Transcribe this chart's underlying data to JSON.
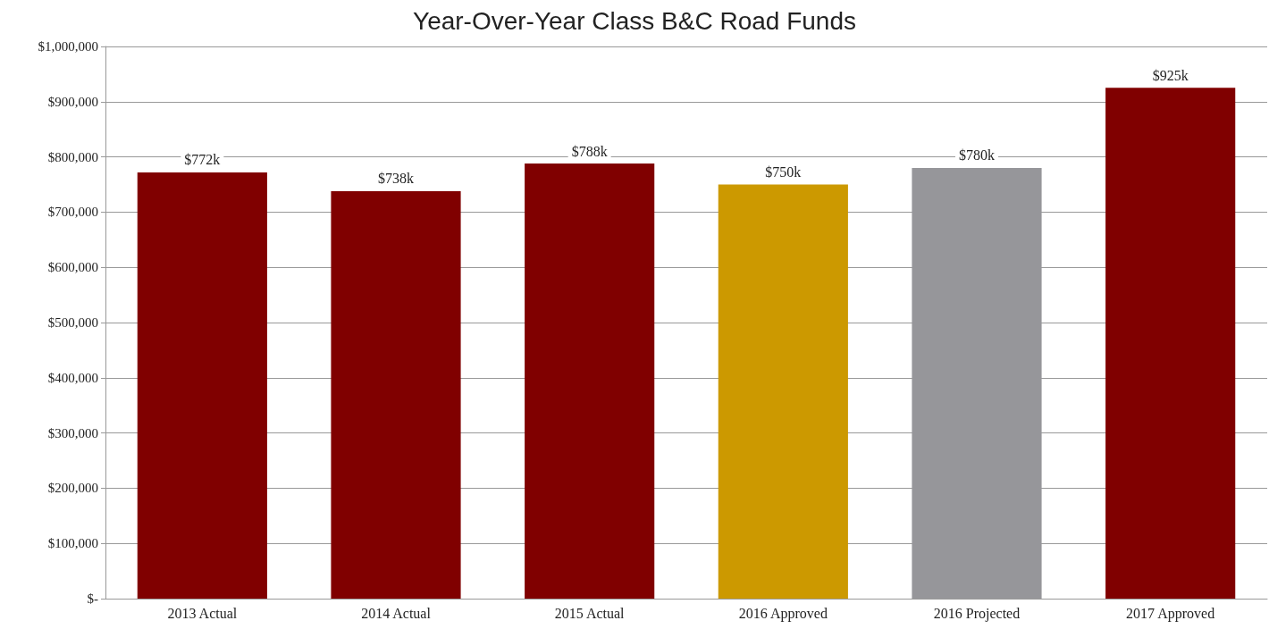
{
  "chart_data": {
    "type": "bar",
    "title": "Year-Over-Year Class B&C Road Funds",
    "categories": [
      "2013 Actual",
      "2014 Actual",
      "2015 Actual",
      "2016 Approved",
      "2016 Projected",
      "2017 Approved"
    ],
    "values": [
      772000,
      738000,
      788000,
      750000,
      780000,
      925000
    ],
    "colors": [
      "#800000",
      "#800000",
      "#800000",
      "#cc9900",
      "#96969a",
      "#800000"
    ],
    "value_labels": [
      "$772k",
      "$738k",
      "$788k",
      "$750k",
      "$780k",
      "$925k"
    ],
    "ylim": [
      0,
      1000000
    ],
    "yticks": [
      {
        "value": 0,
        "label": "$-"
      },
      {
        "value": 100000,
        "label": "$100,000"
      },
      {
        "value": 200000,
        "label": "$200,000"
      },
      {
        "value": 300000,
        "label": "$300,000"
      },
      {
        "value": 400000,
        "label": "$400,000"
      },
      {
        "value": 500000,
        "label": "$500,000"
      },
      {
        "value": 600000,
        "label": "$600,000"
      },
      {
        "value": 700000,
        "label": "$700,000"
      },
      {
        "value": 800000,
        "label": "$800,000"
      },
      {
        "value": 900000,
        "label": "$900,000"
      },
      {
        "value": 1000000,
        "label": "$1,000,000"
      }
    ],
    "grid": "y"
  }
}
